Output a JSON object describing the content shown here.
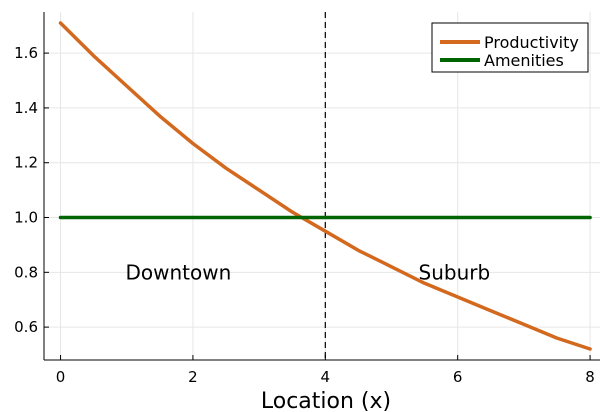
{
  "chart_data": {
    "type": "line",
    "title": "",
    "xlabel": "Location (x)",
    "ylabel": "",
    "xlim": [
      -0.25,
      8.15
    ],
    "ylim": [
      0.48,
      1.75
    ],
    "x_ticks": [
      0,
      2,
      4,
      6,
      8
    ],
    "x_tick_labels": [
      "0",
      "2",
      "4",
      "6",
      "8"
    ],
    "y_ticks": [
      0.6,
      0.8,
      1.0,
      1.2,
      1.4,
      1.6
    ],
    "y_tick_labels": [
      "0.6",
      "0.8",
      "1.0",
      "1.2",
      "1.4",
      "1.6"
    ],
    "grid": true,
    "legend_position": "top-right",
    "series": [
      {
        "name": "Productivity",
        "color": "#d2691e",
        "x": [
          0,
          0.5,
          1,
          1.5,
          2,
          2.5,
          3,
          3.5,
          4,
          4.5,
          5,
          5.5,
          6,
          6.5,
          7,
          7.5,
          8
        ],
        "values": [
          1.71,
          1.59,
          1.48,
          1.37,
          1.27,
          1.18,
          1.1,
          1.02,
          0.95,
          0.88,
          0.82,
          0.76,
          0.71,
          0.66,
          0.61,
          0.56,
          0.52
        ]
      },
      {
        "name": "Amenities",
        "color": "#006400",
        "x": [
          0,
          8
        ],
        "values": [
          1.0,
          1.0
        ]
      }
    ],
    "vline": {
      "x": 4,
      "style": "dashed",
      "color": "#000000"
    },
    "annotations": [
      {
        "text": "Downtown",
        "x": 1.78,
        "y": 0.8
      },
      {
        "text": "Suburb",
        "x": 5.95,
        "y": 0.8
      }
    ]
  }
}
